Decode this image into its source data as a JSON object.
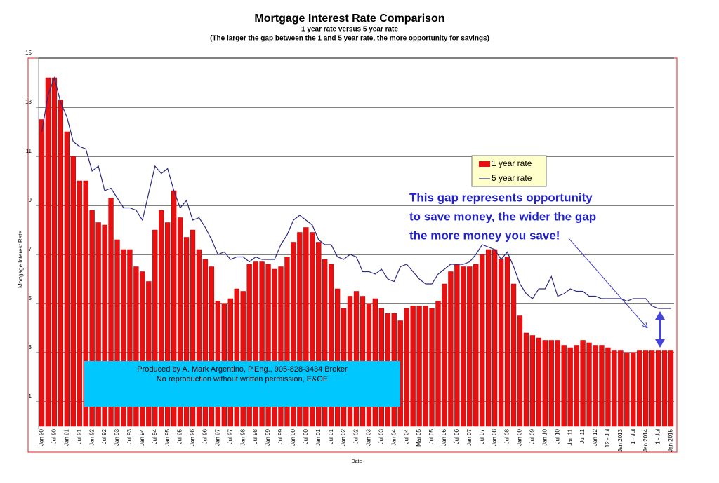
{
  "chart_data": {
    "type": "bar_line",
    "title": "Mortgage Interest Rate Comparison",
    "subtitle": "1 year rate versus 5 year rate",
    "subtitle2": "(The larger the gap between the 1 and 5 year rate, the more opportunity for savings)",
    "y_label": "Mortgage Interest Rate",
    "x_label": "Date",
    "annotations": [
      "This gap represents opportunity",
      "to save money, the wider the gap",
      "the more money you save!"
    ],
    "credit": [
      "Produced by A. Mark Argentino, P.Eng., 905-828-3434 Broker",
      "No reproduction without written permission, E&OE"
    ],
    "categories": [
      "Jan 90",
      null,
      "Jul 90",
      null,
      "Jan 91",
      null,
      "Jul 91",
      null,
      "Jan 92",
      null,
      "Jul 92",
      null,
      "Jan 93",
      null,
      "Jul 93",
      null,
      "Jan 94",
      null,
      "Jul 94",
      null,
      "Jan 95",
      null,
      "Jul 95",
      null,
      "Jan 96",
      null,
      "Jul 96",
      null,
      "Jan 97",
      null,
      "Jul 97",
      null,
      "Jan 98",
      null,
      "Jul 98",
      null,
      "Jan 99",
      null,
      "Jul 99",
      null,
      "Jan 00",
      null,
      "Jul 00",
      null,
      "Jan 01",
      null,
      "Jul 01",
      null,
      "Jan 02",
      null,
      "Jul 02",
      null,
      "Jan 03",
      null,
      "Jul 03",
      null,
      "Jan 04",
      null,
      "Jul 04",
      null,
      "Mar 05",
      null,
      "Jul 05",
      null,
      "Jan 06",
      null,
      "Jul 06",
      null,
      "Jan 07",
      null,
      "Jul 07",
      null,
      "Jan 08",
      null,
      "Jul 08",
      null,
      "Jan 09",
      null,
      "Jul 09",
      null,
      "Jan 10",
      null,
      "Jul 10",
      null,
      "Jan 11",
      null,
      "Jul 11",
      null,
      "Jan 12",
      null,
      "12 - Jul",
      null,
      "Jan 2013",
      null,
      "1 - Jul",
      null,
      "Jan 2014",
      null,
      "1 - Jul",
      null,
      "Jan 2015"
    ],
    "series": [
      {
        "name": "1 year rate",
        "type": "bar",
        "color": "#e81010",
        "values": [
          12.5,
          14.2,
          14.2,
          13.3,
          12.0,
          11.0,
          10.0,
          10.0,
          8.8,
          8.3,
          8.2,
          9.3,
          7.6,
          7.2,
          7.2,
          6.5,
          6.3,
          5.9,
          8.0,
          8.8,
          8.3,
          9.6,
          8.5,
          7.7,
          8.0,
          7.2,
          6.8,
          6.5,
          5.1,
          5.0,
          5.2,
          5.6,
          5.5,
          6.6,
          6.7,
          6.7,
          6.6,
          6.4,
          6.5,
          6.9,
          7.5,
          7.9,
          8.1,
          7.9,
          7.5,
          6.8,
          6.6,
          5.6,
          4.8,
          5.3,
          5.5,
          5.3,
          5.0,
          5.2,
          4.8,
          4.6,
          4.6,
          4.3,
          4.8,
          4.9,
          4.9,
          4.9,
          4.8,
          5.1,
          5.8,
          6.3,
          6.6,
          6.5,
          6.5,
          6.6,
          7.0,
          7.2,
          7.2,
          6.8,
          6.9,
          5.8,
          4.5,
          3.8,
          3.7,
          3.6,
          3.5,
          3.5,
          3.5,
          3.3,
          3.2,
          3.3,
          3.5,
          3.4,
          3.3,
          3.3,
          3.2,
          3.1,
          3.1,
          3.0,
          3.0,
          3.1,
          3.1,
          3.1,
          3.1,
          3.1,
          3.1
        ]
      },
      {
        "name": "5 year rate",
        "type": "line",
        "color": "#2a2a80",
        "values": [
          12.0,
          13.5,
          14.2,
          13.2,
          12.6,
          11.6,
          11.4,
          11.3,
          10.4,
          10.6,
          9.6,
          9.7,
          9.3,
          8.9,
          8.9,
          8.8,
          8.4,
          9.5,
          10.6,
          10.3,
          10.5,
          9.6,
          8.9,
          9.2,
          8.4,
          8.5,
          8.1,
          7.6,
          7.0,
          7.1,
          6.8,
          6.9,
          6.9,
          6.7,
          6.9,
          6.8,
          6.8,
          6.8,
          7.4,
          7.8,
          8.4,
          8.6,
          8.4,
          8.2,
          7.6,
          7.4,
          7.4,
          6.9,
          6.8,
          7.0,
          6.9,
          6.3,
          6.3,
          6.2,
          6.4,
          6.0,
          5.9,
          6.5,
          6.6,
          6.3,
          6.0,
          5.8,
          5.8,
          6.2,
          6.4,
          6.6,
          6.6,
          6.6,
          6.7,
          7.0,
          7.4,
          7.3,
          7.2,
          6.8,
          7.1,
          6.5,
          5.8,
          5.4,
          5.2,
          5.6,
          5.6,
          6.1,
          5.3,
          5.4,
          5.6,
          5.5,
          5.5,
          5.3,
          5.3,
          5.2,
          5.2,
          5.2,
          5.2,
          5.1,
          5.2,
          5.2,
          5.2,
          4.9,
          4.8,
          4.8,
          4.8
        ]
      }
    ],
    "ylim": [
      0,
      15
    ],
    "yticks": [
      1,
      3,
      5,
      7,
      9,
      11,
      13,
      15
    ],
    "grid": true,
    "legend": "upper-right"
  }
}
